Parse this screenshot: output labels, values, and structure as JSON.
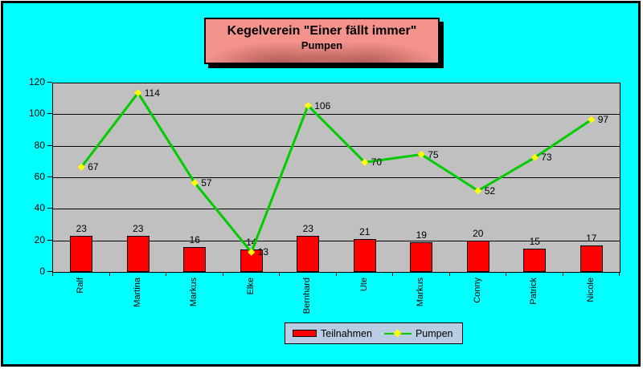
{
  "title": {
    "line1": "Kegelverein \"Einer fällt immer\"",
    "line2": "Pumpen"
  },
  "chart_data": {
    "type": "bar+line",
    "title": "Kegelverein \"Einer fällt immer\"",
    "subtitle": "Pumpen",
    "categories": [
      "Ralf",
      "Martina",
      "Markus",
      "Elke",
      "Bernhard",
      "Ute",
      "Markus",
      "Conny",
      "Patrick",
      "Nicole"
    ],
    "series": [
      {
        "name": "Teilnahmen",
        "type": "bar",
        "color": "#FF0000",
        "values": [
          23,
          23,
          16,
          14,
          23,
          21,
          19,
          20,
          15,
          17
        ]
      },
      {
        "name": "Pumpen",
        "type": "line",
        "color": "#00CC00",
        "marker": "diamond",
        "marker_color": "#FFFF00",
        "values": [
          67,
          114,
          57,
          13,
          106,
          70,
          75,
          52,
          73,
          97
        ]
      }
    ],
    "ylim": [
      0,
      120
    ],
    "yticks": [
      0,
      20,
      40,
      60,
      80,
      100,
      120
    ],
    "grid": true,
    "data_labels": true,
    "legend_position": "bottom"
  },
  "colors": {
    "background": "#00FFFF",
    "plot_background": "#C0C0C0",
    "grid_color": "#000000",
    "axis_text": "#000000",
    "title_box_fill": "#F4928C",
    "title_box_fill_dark": "#7E3230",
    "legend_background": "#B8CCE4"
  }
}
